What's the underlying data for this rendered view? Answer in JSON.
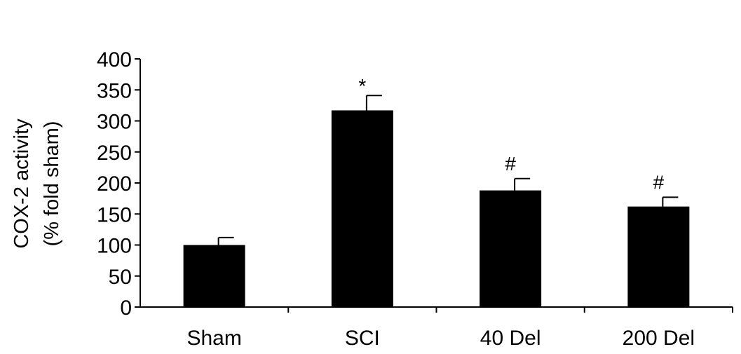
{
  "chart_data": {
    "type": "bar",
    "categories": [
      "Sham",
      "SCI",
      "40 Del",
      "200 Del"
    ],
    "values": [
      100,
      317,
      188,
      162
    ],
    "errors": [
      12,
      24,
      19,
      15
    ],
    "annotations": [
      "",
      "*",
      "#",
      "#"
    ],
    "ylabel_lines": [
      "COX-2 activity",
      "(% fold sham)"
    ],
    "xlabel": "",
    "ylim": [
      0,
      400
    ],
    "yticks": [
      0,
      50,
      100,
      150,
      200,
      250,
      300,
      350,
      400
    ],
    "grid": false,
    "legend": "none",
    "colors": {
      "bar": "#000000",
      "axis": "#000000",
      "background": "#ffffff"
    }
  }
}
